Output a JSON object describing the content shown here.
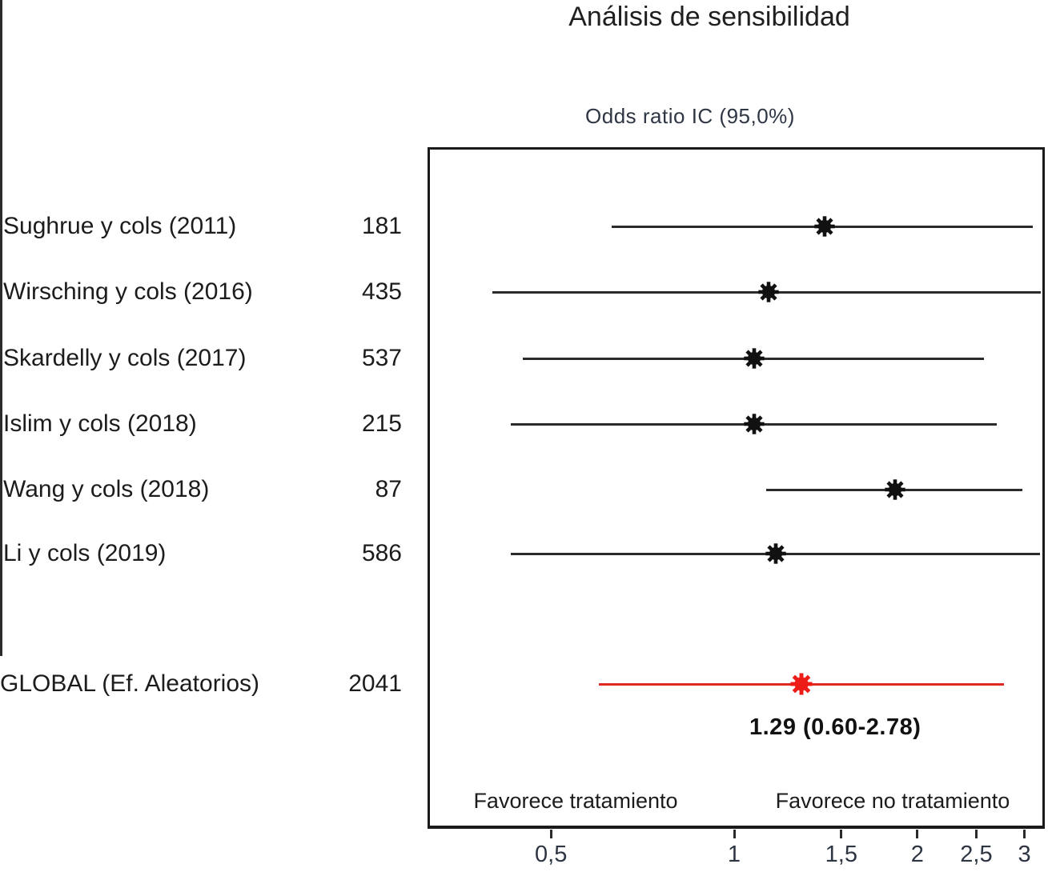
{
  "title": "Análisis de sensibilidad",
  "subtitle": "Odds ratio IC  (95,0%)",
  "colors": {
    "text": "#1c1c1c",
    "subtitle_text": "#2e3644",
    "ci_line": "#2b2b2b",
    "marker": "#111111",
    "global_line": "#de2a20",
    "global_marker": "#ee1c16",
    "reference_line": "#2b2b2b"
  },
  "chart_data": {
    "type": "scatter",
    "subtype": "forest-plot",
    "x_scale": "log",
    "x_axis_range": [
      0.31,
      3.2
    ],
    "x_ticks": [
      {
        "label": "0,5",
        "value": 0.5
      },
      {
        "label": "1",
        "value": 1
      },
      {
        "label": "1,5",
        "value": 1.5
      },
      {
        "label": "2",
        "value": 2
      },
      {
        "label": "2,5",
        "value": 2.5
      },
      {
        "label": "3",
        "value": 3
      }
    ],
    "reference_value": 1,
    "studies": [
      {
        "label": "Sughrue y cols (2011)",
        "n": "181",
        "or": 1.41,
        "ci_low": 0.63,
        "ci_high": 3.1
      },
      {
        "label": "Wirsching y cols (2016)",
        "n": "435",
        "or": 1.14,
        "ci_low": 0.4,
        "ci_high": 3.2
      },
      {
        "label": "Skardelly y cols (2017)",
        "n": "537",
        "or": 1.08,
        "ci_low": 0.45,
        "ci_high": 2.57
      },
      {
        "label": "Islim y cols (2018)",
        "n": "215",
        "or": 1.08,
        "ci_low": 0.43,
        "ci_high": 2.7
      },
      {
        "label": "Wang y cols (2018)",
        "n": "87",
        "or": 1.84,
        "ci_low": 1.13,
        "ci_high": 2.98
      },
      {
        "label": "Li y cols (2019)",
        "n": "586",
        "or": 1.17,
        "ci_low": 0.43,
        "ci_high": 3.18
      }
    ],
    "global": {
      "label": "GLOBAL (Ef. Aleatorios)",
      "n": "2041",
      "or": 1.29,
      "ci_low": 0.6,
      "ci_high": 2.78,
      "estimate_label": "1.29  (0.60-2.78)"
    },
    "favors_left": "Favorece tratamiento",
    "favors_right": "Favorece no tratamiento"
  }
}
